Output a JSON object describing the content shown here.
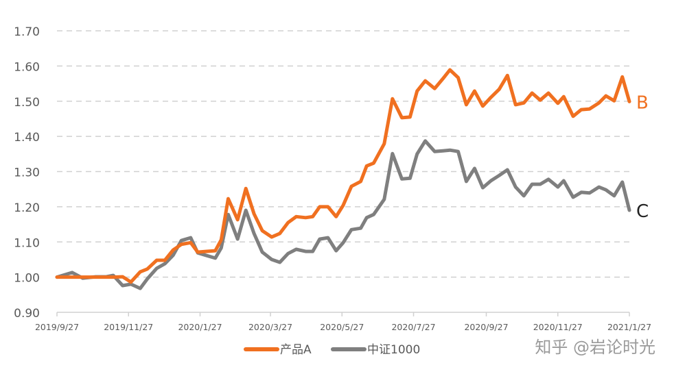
{
  "chart_data": {
    "type": "line",
    "title": "",
    "xlabel": "",
    "ylabel": "",
    "x_unit": "days since 2019/9/27",
    "xlim": [
      0,
      488
    ],
    "ylim": [
      0.9,
      1.7
    ],
    "yticks": [
      0.9,
      1.0,
      1.1,
      1.2,
      1.3,
      1.4,
      1.5,
      1.6,
      1.7
    ],
    "ytick_labels": [
      "0.90",
      "1.00",
      "1.10",
      "1.20",
      "1.30",
      "1.40",
      "1.50",
      "1.60",
      "1.70"
    ],
    "xticks": [
      0,
      61,
      122,
      182,
      243,
      304,
      366,
      427,
      488
    ],
    "xtick_labels": [
      "2019/9/27",
      "2019/11/27",
      "2020/1/27",
      "2020/3/27",
      "2020/5/27",
      "2020/7/27",
      "2020/9/27",
      "2020/11/27",
      "2021/1/27"
    ],
    "grid": "horizontal dashed",
    "legend_position": "bottom",
    "x": [
      0,
      13,
      22,
      33,
      42,
      48,
      56,
      63,
      71,
      77,
      85,
      92,
      99,
      106,
      114,
      120,
      127,
      135,
      140,
      146,
      154,
      161,
      168,
      175,
      183,
      190,
      197,
      204,
      212,
      218,
      224,
      231,
      238,
      244,
      251,
      259,
      264,
      270,
      279,
      286,
      294,
      301,
      307,
      314,
      322,
      329,
      335,
      342,
      349,
      356,
      363,
      370,
      377,
      384,
      391,
      398,
      405,
      412,
      419,
      427,
      432,
      440,
      447,
      454,
      462,
      468,
      475,
      482,
      488
    ],
    "series": [
      {
        "name": "产品A",
        "color": "#F07020",
        "end_label": "B",
        "values": [
          1.0,
          1.0,
          1.0,
          1.0,
          1.0,
          1.0,
          1.001,
          0.986,
          1.015,
          1.023,
          1.048,
          1.048,
          1.077,
          1.093,
          1.098,
          1.071,
          1.073,
          1.075,
          1.106,
          1.223,
          1.163,
          1.252,
          1.18,
          1.132,
          1.114,
          1.124,
          1.155,
          1.172,
          1.169,
          1.172,
          1.2,
          1.2,
          1.172,
          1.204,
          1.258,
          1.272,
          1.316,
          1.324,
          1.379,
          1.507,
          1.453,
          1.455,
          1.529,
          1.558,
          1.536,
          1.564,
          1.589,
          1.567,
          1.49,
          1.529,
          1.486,
          1.511,
          1.534,
          1.573,
          1.49,
          1.495,
          1.523,
          1.503,
          1.523,
          1.494,
          1.513,
          1.457,
          1.476,
          1.478,
          1.495,
          1.515,
          1.501,
          1.569,
          1.499
        ]
      },
      {
        "name": "中证1000",
        "color": "#7F7F7F",
        "end_label": "C",
        "values": [
          1.0,
          1.013,
          0.997,
          1.001,
          1.001,
          1.005,
          0.976,
          0.98,
          0.968,
          0.995,
          1.025,
          1.038,
          1.062,
          1.104,
          1.112,
          1.069,
          1.062,
          1.054,
          1.083,
          1.178,
          1.108,
          1.19,
          1.124,
          1.071,
          1.05,
          1.042,
          1.067,
          1.079,
          1.073,
          1.073,
          1.108,
          1.112,
          1.075,
          1.098,
          1.135,
          1.139,
          1.169,
          1.178,
          1.221,
          1.351,
          1.279,
          1.281,
          1.35,
          1.387,
          1.357,
          1.359,
          1.361,
          1.357,
          1.272,
          1.309,
          1.254,
          1.274,
          1.289,
          1.305,
          1.256,
          1.231,
          1.264,
          1.264,
          1.278,
          1.256,
          1.274,
          1.227,
          1.241,
          1.239,
          1.256,
          1.248,
          1.231,
          1.27,
          1.19
        ]
      }
    ]
  },
  "watermark": "知乎 @岩论时光"
}
